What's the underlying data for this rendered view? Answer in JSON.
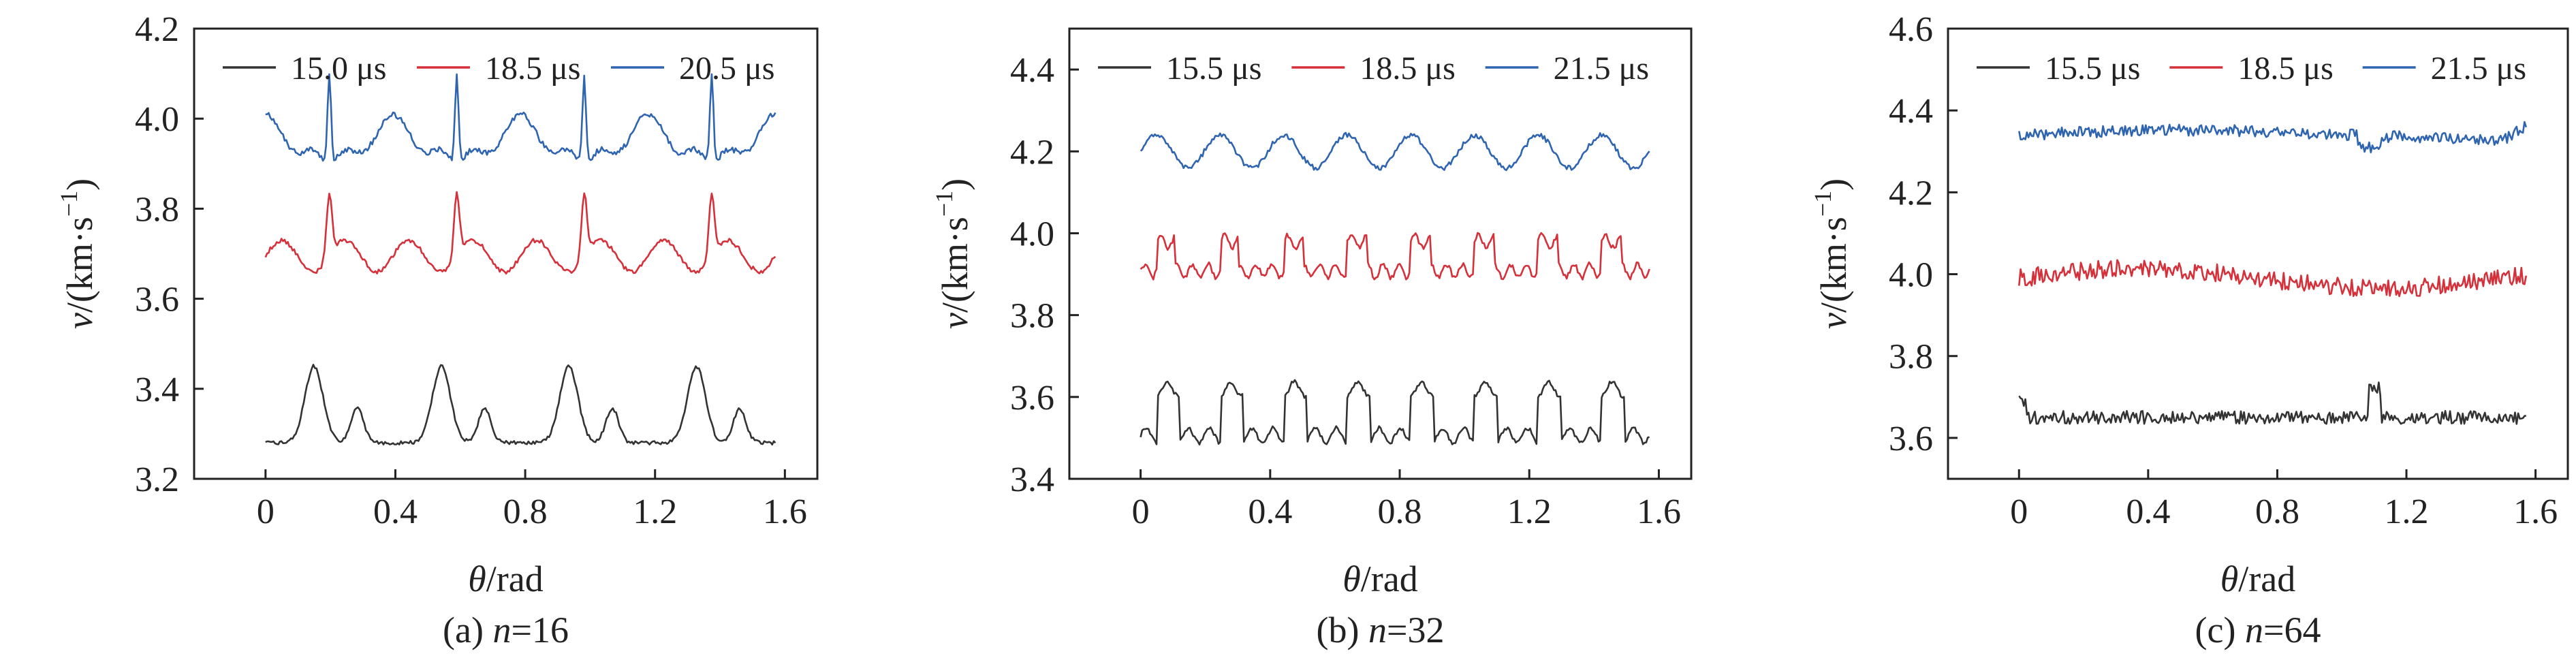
{
  "figure": {
    "panels_count": 3
  },
  "chart_data": [
    {
      "type": "line",
      "caption_prefix": "(a) ",
      "caption_var": "n",
      "caption_value": "=16",
      "xlabel_var": "θ",
      "xlabel_unit": "/rad",
      "ylabel_var": "v",
      "ylabel_unit": "/(km·s",
      "ylabel_exp": "−1",
      "ylabel_close": ")",
      "xlim": [
        -0.22,
        1.7
      ],
      "ylim": [
        3.2,
        4.2
      ],
      "xticks": [
        0,
        0.4,
        0.8,
        1.2,
        1.6
      ],
      "xtick_labels": [
        "0",
        "0.4",
        "0.8",
        "1.2",
        "1.6"
      ],
      "yticks": [
        3.2,
        3.4,
        3.6,
        3.8,
        4.0,
        4.2
      ],
      "ytick_labels": [
        "3.2",
        "3.4",
        "3.6",
        "3.8",
        "4.0",
        "4.2"
      ],
      "legend": "top",
      "series": [
        {
          "name": "15.0 μs",
          "color": "#333333",
          "pattern": "a_low",
          "base": 3.28,
          "amp": 0.17
        },
        {
          "name": "18.5 μs",
          "color": "#d6303a",
          "pattern": "a_mid",
          "base": 3.65,
          "amp": 0.1
        },
        {
          "name": "20.5 μs",
          "color": "#2e64b0",
          "pattern": "a_high",
          "base": 3.95,
          "amp": 0.12
        }
      ]
    },
    {
      "type": "line",
      "caption_prefix": "(b) ",
      "caption_var": "n",
      "caption_value": "=32",
      "xlabel_var": "θ",
      "xlabel_unit": "/rad",
      "ylabel_var": "v",
      "ylabel_unit": "/(km·s",
      "ylabel_exp": "−1",
      "ylabel_close": ")",
      "xlim": [
        -0.22,
        1.7
      ],
      "ylim": [
        3.4,
        4.5
      ],
      "xticks": [
        0,
        0.4,
        0.8,
        1.2,
        1.6
      ],
      "xtick_labels": [
        "0",
        "0.4",
        "0.8",
        "1.2",
        "1.6"
      ],
      "yticks": [
        3.4,
        3.6,
        3.8,
        4.0,
        4.2,
        4.4
      ],
      "ytick_labels": [
        "3.4",
        "3.6",
        "3.8",
        "4.0",
        "4.2",
        "4.4"
      ],
      "legend": "top",
      "series": [
        {
          "name": "15.5 μs",
          "color": "#333333",
          "pattern": "b_low",
          "base": 3.5,
          "amp": 0.12
        },
        {
          "name": "18.5 μs",
          "color": "#d6303a",
          "pattern": "b_mid",
          "base": 3.9,
          "amp": 0.08
        },
        {
          "name": "21.5 μs",
          "color": "#2e64b0",
          "pattern": "b_high",
          "base": 4.2,
          "amp": 0.04
        }
      ]
    },
    {
      "type": "line",
      "caption_prefix": "(c) ",
      "caption_var": "n",
      "caption_value": "=64",
      "xlabel_var": "θ",
      "xlabel_unit": "/rad",
      "ylabel_var": "v",
      "ylabel_unit": "/(km·s",
      "ylabel_exp": "−1",
      "ylabel_close": ")",
      "xlim": [
        -0.22,
        1.7
      ],
      "ylim": [
        3.5,
        4.6
      ],
      "xticks": [
        0,
        0.4,
        0.8,
        1.2,
        1.6
      ],
      "xtick_labels": [
        "0",
        "0.4",
        "0.8",
        "1.2",
        "1.6"
      ],
      "yticks": [
        3.6,
        3.8,
        4.0,
        4.2,
        4.4,
        4.6
      ],
      "ytick_labels": [
        "3.6",
        "3.8",
        "4.0",
        "4.2",
        "4.4",
        "4.6"
      ],
      "legend": "top",
      "series": [
        {
          "name": "15.5 μs",
          "color": "#333333",
          "pattern": "c_low",
          "base": 3.65,
          "amp": 0.02
        },
        {
          "name": "18.5 μs",
          "color": "#d6303a",
          "pattern": "c_mid",
          "base": 3.99,
          "amp": 0.02
        },
        {
          "name": "21.5 μs",
          "color": "#2e64b0",
          "pattern": "c_high",
          "base": 4.34,
          "amp": 0.02
        }
      ]
    }
  ]
}
